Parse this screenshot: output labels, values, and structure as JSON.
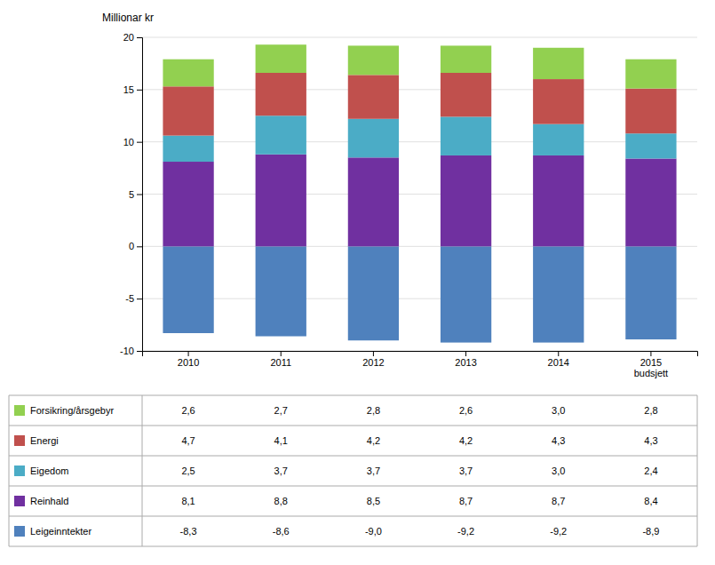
{
  "chart_data": {
    "type": "bar",
    "stacked": true,
    "grid": true,
    "ylabel": "Millionar kr",
    "categories": [
      "2010",
      "2011",
      "2012",
      "2013",
      "2014",
      "2015\nbudsjett"
    ],
    "series": [
      {
        "name": "Forsikring/årsgebyr",
        "color": "#92D050",
        "values": [
          2.6,
          2.7,
          2.8,
          2.6,
          3.0,
          2.8
        ],
        "value_labels": [
          "2,6",
          "2,7",
          "2,8",
          "2,6",
          "3,0",
          "2,8"
        ]
      },
      {
        "name": "Energi",
        "color": "#C0504D",
        "values": [
          4.7,
          4.1,
          4.2,
          4.2,
          4.3,
          4.3
        ],
        "value_labels": [
          "4,7",
          "4,1",
          "4,2",
          "4,2",
          "4,3",
          "4,3"
        ]
      },
      {
        "name": "Eigedom",
        "color": "#4BACC6",
        "values": [
          2.5,
          3.7,
          3.7,
          3.7,
          3.0,
          2.4
        ],
        "value_labels": [
          "2,5",
          "3,7",
          "3,7",
          "3,7",
          "3,0",
          "2,4"
        ]
      },
      {
        "name": "Reinhald",
        "color": "#7030A0",
        "values": [
          8.1,
          8.8,
          8.5,
          8.7,
          8.7,
          8.4
        ],
        "value_labels": [
          "8,1",
          "8,8",
          "8,5",
          "8,7",
          "8,7",
          "8,4"
        ]
      },
      {
        "name": "Leigeinntekter",
        "color": "#4F81BD",
        "values": [
          -8.3,
          -8.6,
          -9.0,
          -9.2,
          -9.2,
          -8.9
        ],
        "value_labels": [
          "-8,3",
          "-8,6",
          "-9,0",
          "-9,2",
          "-9,2",
          "-8,9"
        ]
      }
    ],
    "ylim": [
      -10,
      20
    ],
    "yticks": [
      -10,
      -5,
      0,
      5,
      10,
      15,
      20
    ]
  }
}
